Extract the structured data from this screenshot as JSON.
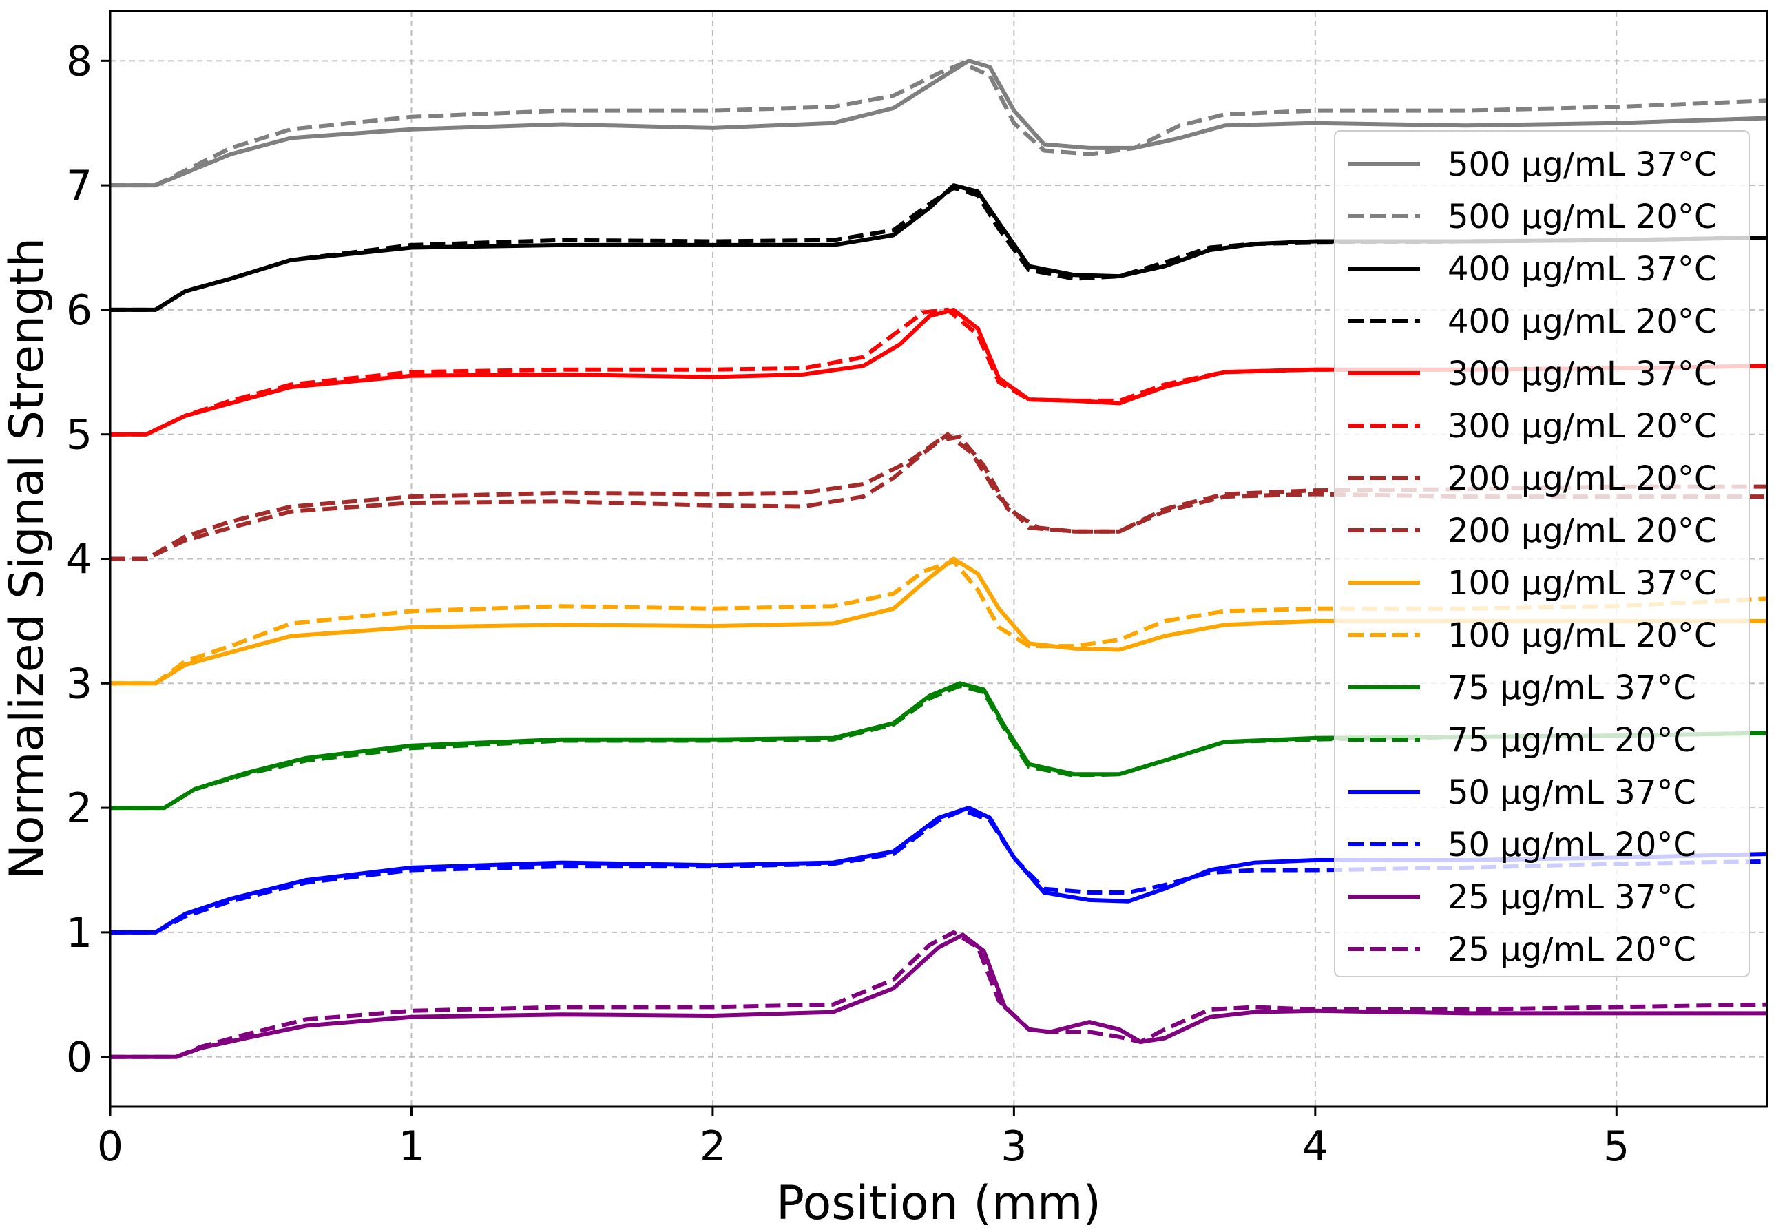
{
  "chart_data": {
    "type": "line",
    "title": "",
    "xlabel": "Position (mm)",
    "ylabel": "Normalized Signal Strength",
    "xlim": [
      0,
      5.5
    ],
    "ylim": [
      -0.4,
      8.4
    ],
    "xticks": [
      0,
      1,
      2,
      3,
      4,
      5
    ],
    "xtick_labels": [
      "0",
      "1",
      "2",
      "3",
      "4",
      "5"
    ],
    "yticks": [
      0,
      1,
      2,
      3,
      4,
      5,
      6,
      7,
      8
    ],
    "ytick_labels": [
      "0",
      "1",
      "2",
      "3",
      "4",
      "5",
      "6",
      "7",
      "8"
    ],
    "grid": true,
    "legend_position": "right",
    "series": [
      {
        "name": "500 µg/mL 37°C",
        "color": "#808080",
        "dash": "solid",
        "x": [
          0,
          0.15,
          0.25,
          0.4,
          0.6,
          1.0,
          1.5,
          2.0,
          2.4,
          2.6,
          2.75,
          2.85,
          2.92,
          3.0,
          3.1,
          3.25,
          3.4,
          3.55,
          3.7,
          4.0,
          4.5,
          5.0,
          5.5
        ],
        "y": [
          7.0,
          7.0,
          7.1,
          7.25,
          7.38,
          7.45,
          7.49,
          7.46,
          7.5,
          7.62,
          7.85,
          8.0,
          7.95,
          7.6,
          7.33,
          7.3,
          7.3,
          7.38,
          7.48,
          7.5,
          7.48,
          7.5,
          7.54
        ]
      },
      {
        "name": "500 µg/mL 20°C",
        "color": "#808080",
        "dash": "dashed",
        "x": [
          0,
          0.15,
          0.25,
          0.4,
          0.6,
          1.0,
          1.5,
          2.0,
          2.4,
          2.6,
          2.75,
          2.83,
          2.92,
          3.0,
          3.1,
          3.25,
          3.4,
          3.55,
          3.7,
          4.0,
          4.5,
          5.0,
          5.5
        ],
        "y": [
          7.0,
          7.0,
          7.12,
          7.3,
          7.45,
          7.55,
          7.6,
          7.6,
          7.63,
          7.72,
          7.9,
          7.98,
          7.88,
          7.5,
          7.28,
          7.25,
          7.3,
          7.48,
          7.57,
          7.6,
          7.6,
          7.63,
          7.68
        ]
      },
      {
        "name": "400 µg/mL 37°C",
        "color": "#000000",
        "dash": "solid",
        "x": [
          0,
          0.15,
          0.25,
          0.4,
          0.6,
          1.0,
          1.5,
          2.0,
          2.4,
          2.6,
          2.72,
          2.8,
          2.88,
          2.95,
          3.05,
          3.2,
          3.35,
          3.5,
          3.65,
          3.8,
          4.0,
          4.5,
          5.0,
          5.5
        ],
        "y": [
          6.0,
          6.0,
          6.15,
          6.25,
          6.4,
          6.5,
          6.52,
          6.52,
          6.52,
          6.6,
          6.82,
          7.0,
          6.95,
          6.7,
          6.35,
          6.28,
          6.27,
          6.35,
          6.48,
          6.53,
          6.55,
          6.55,
          6.56,
          6.58
        ]
      },
      {
        "name": "400 µg/mL 20°C",
        "color": "#000000",
        "dash": "dashed",
        "x": [
          0,
          0.15,
          0.25,
          0.4,
          0.6,
          1.0,
          1.5,
          2.0,
          2.4,
          2.6,
          2.72,
          2.8,
          2.88,
          2.95,
          3.05,
          3.2,
          3.35,
          3.5,
          3.65,
          3.8,
          4.0,
          4.5,
          5.0,
          5.5
        ],
        "y": [
          6.0,
          6.0,
          6.15,
          6.25,
          6.4,
          6.52,
          6.56,
          6.55,
          6.56,
          6.64,
          6.85,
          6.98,
          6.92,
          6.65,
          6.32,
          6.25,
          6.27,
          6.38,
          6.5,
          6.53,
          6.54,
          6.55,
          6.56,
          6.58
        ]
      },
      {
        "name": "300 µg/mL 37°C",
        "color": "#ff0000",
        "dash": "solid",
        "x": [
          0,
          0.12,
          0.25,
          0.4,
          0.6,
          1.0,
          1.5,
          2.0,
          2.3,
          2.5,
          2.62,
          2.72,
          2.8,
          2.88,
          2.95,
          3.05,
          3.2,
          3.35,
          3.5,
          3.7,
          4.0,
          4.5,
          5.0,
          5.5
        ],
        "y": [
          5.0,
          5.0,
          5.15,
          5.25,
          5.38,
          5.47,
          5.48,
          5.46,
          5.48,
          5.55,
          5.72,
          5.95,
          6.0,
          5.85,
          5.45,
          5.28,
          5.27,
          5.25,
          5.38,
          5.5,
          5.52,
          5.52,
          5.53,
          5.55
        ]
      },
      {
        "name": "300 µg/mL 20°C",
        "color": "#ff0000",
        "dash": "dashed",
        "x": [
          0,
          0.12,
          0.25,
          0.4,
          0.6,
          1.0,
          1.5,
          2.0,
          2.3,
          2.5,
          2.6,
          2.7,
          2.78,
          2.88,
          2.95,
          3.05,
          3.2,
          3.35,
          3.5,
          3.7,
          4.0,
          4.5,
          5.0,
          5.5
        ],
        "y": [
          5.0,
          5.0,
          5.15,
          5.27,
          5.4,
          5.5,
          5.52,
          5.52,
          5.53,
          5.62,
          5.8,
          5.98,
          6.0,
          5.8,
          5.42,
          5.28,
          5.27,
          5.27,
          5.4,
          5.5,
          5.52,
          5.52,
          5.53,
          5.55
        ]
      },
      {
        "name": "200 µg/mL 20°C",
        "color": "#a52a2a",
        "dash": "dashed",
        "x": [
          0,
          0.12,
          0.25,
          0.4,
          0.6,
          1.0,
          1.5,
          2.0,
          2.3,
          2.5,
          2.6,
          2.7,
          2.78,
          2.86,
          2.95,
          3.05,
          3.2,
          3.35,
          3.5,
          3.7,
          4.0,
          4.5,
          5.0,
          5.5
        ],
        "y": [
          4.0,
          4.0,
          4.15,
          4.25,
          4.38,
          4.45,
          4.46,
          4.43,
          4.42,
          4.5,
          4.65,
          4.85,
          5.0,
          4.85,
          4.5,
          4.25,
          4.22,
          4.22,
          4.38,
          4.5,
          4.52,
          4.5,
          4.5,
          4.5
        ]
      },
      {
        "name": "200 µg/mL 20°C",
        "color": "#a52a2a",
        "dash": "dashed",
        "x": [
          0,
          0.12,
          0.25,
          0.4,
          0.6,
          1.0,
          1.5,
          2.0,
          2.3,
          2.5,
          2.65,
          2.75,
          2.82,
          2.9,
          2.98,
          3.08,
          3.2,
          3.35,
          3.5,
          3.7,
          4.0,
          4.5,
          5.0,
          5.5
        ],
        "y": [
          4.0,
          4.0,
          4.18,
          4.3,
          4.42,
          4.5,
          4.53,
          4.52,
          4.53,
          4.6,
          4.78,
          4.95,
          4.98,
          4.75,
          4.4,
          4.25,
          4.22,
          4.22,
          4.4,
          4.52,
          4.55,
          4.56,
          4.58,
          4.58
        ]
      },
      {
        "name": "100 µg/mL 37°C",
        "color": "#ffa500",
        "dash": "solid",
        "x": [
          0,
          0.15,
          0.25,
          0.4,
          0.6,
          1.0,
          1.5,
          2.0,
          2.4,
          2.6,
          2.72,
          2.8,
          2.88,
          2.95,
          3.05,
          3.2,
          3.35,
          3.5,
          3.7,
          4.0,
          4.5,
          5.0,
          5.5
        ],
        "y": [
          3.0,
          3.0,
          3.15,
          3.25,
          3.38,
          3.45,
          3.47,
          3.46,
          3.48,
          3.6,
          3.85,
          4.0,
          3.88,
          3.6,
          3.32,
          3.28,
          3.27,
          3.38,
          3.47,
          3.5,
          3.5,
          3.5,
          3.5
        ]
      },
      {
        "name": "100 µg/mL 20°C",
        "color": "#ffa500",
        "dash": "dashed",
        "x": [
          0,
          0.15,
          0.25,
          0.4,
          0.6,
          1.0,
          1.5,
          2.0,
          2.4,
          2.6,
          2.7,
          2.8,
          2.88,
          2.95,
          3.05,
          3.2,
          3.35,
          3.5,
          3.7,
          4.0,
          4.5,
          5.0,
          5.5
        ],
        "y": [
          3.0,
          3.0,
          3.18,
          3.3,
          3.48,
          3.58,
          3.62,
          3.6,
          3.62,
          3.72,
          3.9,
          3.98,
          3.75,
          3.45,
          3.3,
          3.3,
          3.35,
          3.5,
          3.58,
          3.6,
          3.6,
          3.62,
          3.68
        ]
      },
      {
        "name": "75 µg/mL 37°C",
        "color": "#008000",
        "dash": "solid",
        "x": [
          0,
          0.18,
          0.28,
          0.45,
          0.65,
          1.0,
          1.5,
          2.0,
          2.4,
          2.6,
          2.72,
          2.82,
          2.9,
          2.97,
          3.05,
          3.2,
          3.35,
          3.5,
          3.7,
          4.0,
          4.5,
          5.0,
          5.5
        ],
        "y": [
          2.0,
          2.0,
          2.15,
          2.28,
          2.4,
          2.5,
          2.55,
          2.55,
          2.56,
          2.68,
          2.9,
          3.0,
          2.95,
          2.65,
          2.35,
          2.27,
          2.27,
          2.38,
          2.53,
          2.56,
          2.57,
          2.58,
          2.6
        ]
      },
      {
        "name": "75 µg/mL 20°C",
        "color": "#008000",
        "dash": "dashed",
        "x": [
          0,
          0.18,
          0.28,
          0.45,
          0.65,
          1.0,
          1.5,
          2.0,
          2.4,
          2.6,
          2.72,
          2.82,
          2.9,
          2.97,
          3.05,
          3.2,
          3.35,
          3.5,
          3.7,
          4.0,
          4.5,
          5.0,
          5.5
        ],
        "y": [
          2.0,
          2.0,
          2.15,
          2.27,
          2.38,
          2.48,
          2.54,
          2.54,
          2.55,
          2.67,
          2.88,
          2.98,
          2.93,
          2.63,
          2.33,
          2.26,
          2.27,
          2.38,
          2.53,
          2.55,
          2.57,
          2.58,
          2.6
        ]
      },
      {
        "name": "50 µg/mL 37°C",
        "color": "#0000ff",
        "dash": "solid",
        "x": [
          0,
          0.15,
          0.25,
          0.4,
          0.65,
          1.0,
          1.5,
          2.0,
          2.4,
          2.6,
          2.75,
          2.85,
          2.92,
          3.0,
          3.1,
          3.25,
          3.38,
          3.5,
          3.65,
          3.8,
          4.0,
          4.5,
          5.0,
          5.5
        ],
        "y": [
          1.0,
          1.0,
          1.15,
          1.27,
          1.42,
          1.52,
          1.56,
          1.54,
          1.56,
          1.65,
          1.92,
          2.0,
          1.92,
          1.6,
          1.32,
          1.26,
          1.25,
          1.35,
          1.5,
          1.56,
          1.58,
          1.58,
          1.6,
          1.63
        ]
      },
      {
        "name": "50 µg/mL 20°C",
        "color": "#0000ff",
        "dash": "dashed",
        "x": [
          0,
          0.15,
          0.25,
          0.4,
          0.65,
          1.0,
          1.5,
          2.0,
          2.4,
          2.6,
          2.75,
          2.83,
          2.92,
          3.0,
          3.1,
          3.25,
          3.38,
          3.5,
          3.65,
          3.8,
          4.0,
          4.5,
          5.0,
          5.5
        ],
        "y": [
          1.0,
          1.0,
          1.13,
          1.25,
          1.4,
          1.5,
          1.53,
          1.53,
          1.55,
          1.63,
          1.9,
          1.98,
          1.9,
          1.6,
          1.35,
          1.32,
          1.32,
          1.38,
          1.48,
          1.5,
          1.5,
          1.52,
          1.55,
          1.57
        ]
      },
      {
        "name": "25 µg/mL 37°C",
        "color": "#800080",
        "dash": "solid",
        "x": [
          0,
          0.22,
          0.3,
          0.45,
          0.65,
          1.0,
          1.5,
          2.0,
          2.4,
          2.6,
          2.75,
          2.83,
          2.9,
          2.97,
          3.05,
          3.12,
          3.25,
          3.35,
          3.42,
          3.5,
          3.65,
          3.8,
          4.0,
          4.5,
          5.0,
          5.5
        ],
        "y": [
          0.0,
          0.0,
          0.07,
          0.15,
          0.25,
          0.32,
          0.34,
          0.33,
          0.36,
          0.55,
          0.88,
          0.98,
          0.85,
          0.4,
          0.22,
          0.2,
          0.28,
          0.22,
          0.12,
          0.15,
          0.32,
          0.36,
          0.37,
          0.35,
          0.35,
          0.35
        ]
      },
      {
        "name": "25 µg/mL 20°C",
        "color": "#800080",
        "dash": "dashed",
        "x": [
          0,
          0.22,
          0.3,
          0.45,
          0.65,
          1.0,
          1.5,
          2.0,
          2.4,
          2.6,
          2.72,
          2.8,
          2.88,
          2.95,
          3.05,
          3.12,
          3.25,
          3.35,
          3.42,
          3.5,
          3.65,
          3.8,
          4.0,
          4.5,
          5.0,
          5.5
        ],
        "y": [
          0.0,
          0.0,
          0.08,
          0.18,
          0.3,
          0.37,
          0.4,
          0.4,
          0.42,
          0.62,
          0.9,
          1.0,
          0.88,
          0.45,
          0.22,
          0.2,
          0.2,
          0.16,
          0.12,
          0.22,
          0.38,
          0.4,
          0.38,
          0.38,
          0.4,
          0.42
        ]
      }
    ]
  }
}
